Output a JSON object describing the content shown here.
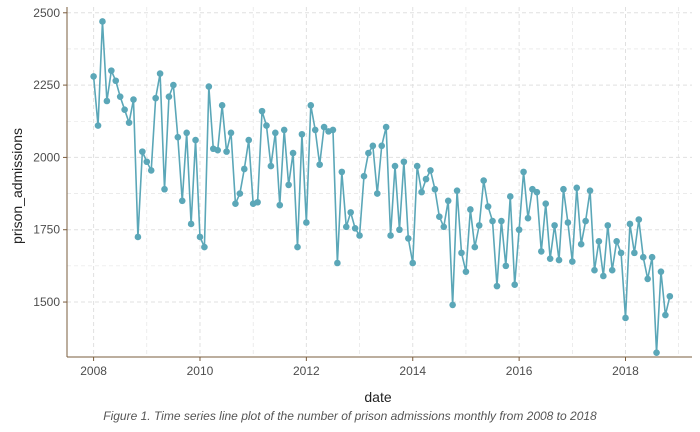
{
  "chart_data": {
    "type": "line",
    "xlabel": "date",
    "ylabel": "prison_admissions",
    "caption": "Figure 1. Time series line plot of the number of prison admissions monthly from 2008 to 2018",
    "xlim": [
      "2007-07-01",
      "2019-04-01"
    ],
    "ylim": [
      1310,
      2520
    ],
    "x_ticks": [
      2008,
      2010,
      2012,
      2014,
      2016,
      2018
    ],
    "y_ticks": [
      1500,
      1750,
      2000,
      2250,
      2500
    ],
    "grid": true,
    "colors": {
      "line": "#5ba7b8",
      "point": "#5ba7b8",
      "grid": "#e0e0e0",
      "axis": "#7a5c3d"
    },
    "series": [
      {
        "start": "2008-01",
        "frequency": "monthly",
        "values": [
          2280,
          2110,
          2470,
          2195,
          2300,
          2265,
          2210,
          2165,
          2120,
          2200,
          1725,
          2020,
          1985,
          1955,
          2205,
          2290,
          1890,
          2210,
          2250,
          2070,
          1850,
          2085,
          1770,
          2060,
          1725,
          1690,
          2245,
          2030,
          2025,
          2180,
          2020,
          2085,
          1840,
          1875,
          1960,
          2060,
          1840,
          1845,
          2160,
          2110,
          1970,
          2085,
          1835,
          2095,
          1905,
          2015,
          1690,
          2080,
          1775,
          2180,
          2095,
          1975,
          2105,
          2090,
          2095,
          1635,
          1950,
          1760,
          1810,
          1755,
          1730,
          1935,
          2015,
          2040,
          1875,
          2040,
          2105,
          1730,
          1970,
          1750,
          1985,
          1720,
          1635,
          1970,
          1880,
          1925,
          1955,
          1890,
          1795,
          1760,
          1850,
          1490,
          1885,
          1670,
          1605,
          1820,
          1690,
          1765,
          1920,
          1830,
          1780,
          1555,
          1780,
          1625,
          1865,
          1560,
          1750,
          1950,
          1790,
          1890,
          1880,
          1675,
          1840,
          1650,
          1765,
          1645,
          1890,
          1775,
          1640,
          1895,
          1700,
          1780,
          1885,
          1610,
          1710,
          1590,
          1765,
          1610,
          1710,
          1670,
          1445,
          1770,
          1670,
          1785,
          1655,
          1580,
          1655,
          1325,
          1605,
          1455,
          1520
        ]
      }
    ]
  }
}
